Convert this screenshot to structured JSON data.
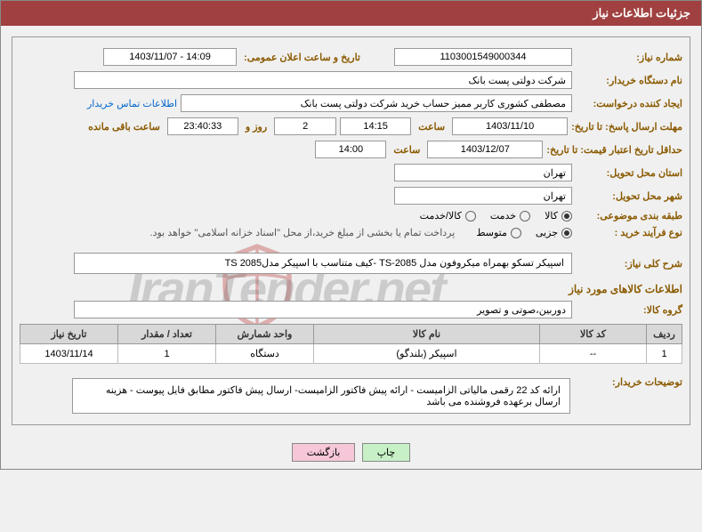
{
  "header": {
    "title": "جزئیات اطلاعات نیاز"
  },
  "fields": {
    "need_no_label": "شماره نیاز:",
    "need_no": "1103001549000344",
    "announce_label": "تاریخ و ساعت اعلان عمومی:",
    "announce_value": "1403/11/07 - 14:09",
    "buyer_org_label": "نام دستگاه خریدار:",
    "buyer_org": "شرکت دولتی پست بانک",
    "requester_label": "ایجاد کننده درخواست:",
    "requester": "مصطفی کشوری کاربر ممیز حساب خرید شرکت دولتی پست بانک",
    "contact_link": "اطلاعات تماس خریدار",
    "reply_deadline_label": "مهلت ارسال پاسخ: تا تاریخ:",
    "reply_date": "1403/11/10",
    "time_label": "ساعت",
    "reply_time": "14:15",
    "days_remain": "2",
    "days_remain_label": "روز و",
    "time_remain": "23:40:33",
    "time_remain_label": "ساعت باقی مانده",
    "price_valid_label": "حداقل تاریخ اعتبار قیمت: تا تاریخ:",
    "price_valid_date": "1403/12/07",
    "price_valid_time": "14:00",
    "province_label": "استان محل تحویل:",
    "province": "تهران",
    "city_label": "شهر محل تحویل:",
    "city": "تهران",
    "category_label": "طبقه بندی موضوعی:",
    "radios": {
      "goods": "کالا",
      "service": "خدمت",
      "both": "کالا/خدمت"
    },
    "process_label": "نوع فرآیند خرید :",
    "process_radios": {
      "partial": "جزیی",
      "medium": "متوسط"
    },
    "payment_note": "پرداخت تمام یا بخشی از مبلغ خرید،از محل \"اسناد خزانه اسلامی\" خواهد بود.",
    "need_title_label": "شرح کلی نیاز:",
    "need_title": "اسپیکر تسکو بهمراه میکروفون مدل TS-2085 -کیف متناسب با اسپیکر مدلTS 2085",
    "goods_info_title": "اطلاعات کالاهای مورد نیاز",
    "group_label": "گروه کالا:",
    "group_value": "دوربین،صوتی و تصویر",
    "buyer_notes_label": "توضیحات خریدار:",
    "buyer_notes": "ارائه کد 22 رقمی مالیاتی الزامیست - ارائه پیش فاکتور الزامیست- ارسال پیش فاکتور مطابق فایل پیوست - هزینه ارسال برعهده فروشنده می باشد"
  },
  "table": {
    "columns": [
      "ردیف",
      "کد کالا",
      "نام کالا",
      "واحد شمارش",
      "تعداد / مقدار",
      "تاریخ نیاز"
    ],
    "col_widths": [
      "40px",
      "120px",
      "auto",
      "110px",
      "110px",
      "110px"
    ],
    "rows": [
      [
        "1",
        "--",
        "اسپیکر (بلندگو)",
        "دستگاه",
        "1",
        "1403/11/14"
      ]
    ]
  },
  "buttons": {
    "print": "چاپ",
    "back": "بازگشت"
  },
  "colors": {
    "header_bg": "#a04040",
    "label_color": "#8a5a00",
    "border": "#999",
    "th_bg": "#d8d8d8"
  }
}
